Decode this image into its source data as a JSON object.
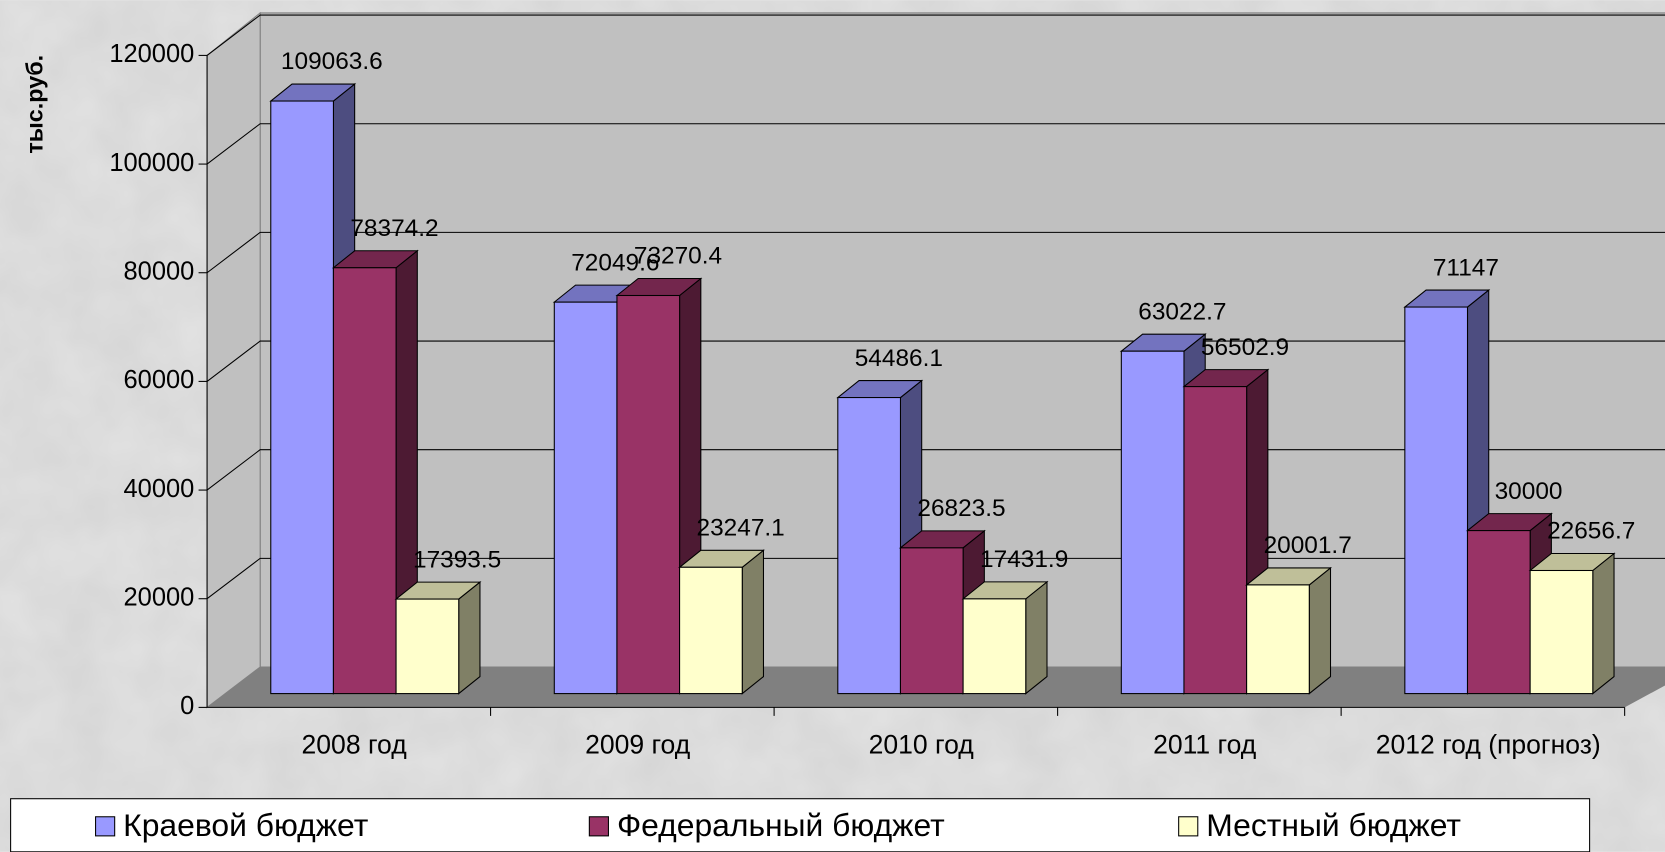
{
  "chart_data": {
    "type": "bar",
    "y_label": "тыс.руб.",
    "categories": [
      "2008 год",
      "2009 год",
      "2010 год",
      "2011 год",
      "2012 год (прогноз)"
    ],
    "series": [
      {
        "name": "Краевой бюджет",
        "color": "#9999ff",
        "values": [
          109063.6,
          72049.6,
          54486.1,
          63022.7,
          71147
        ]
      },
      {
        "name": "Федеральный бюджет",
        "color": "#993366",
        "values": [
          78374.2,
          73270.4,
          26823.5,
          56502.9,
          30000
        ]
      },
      {
        "name": "Местный бюджет",
        "color": "#ffffcc",
        "values": [
          17393.5,
          23247.1,
          17431.9,
          20001.7,
          22656.7
        ]
      }
    ],
    "ylim": [
      0,
      120000
    ],
    "yticks": [
      0,
      20000,
      40000,
      60000,
      80000,
      100000,
      120000
    ],
    "grid": true,
    "legend": "bottom"
  }
}
